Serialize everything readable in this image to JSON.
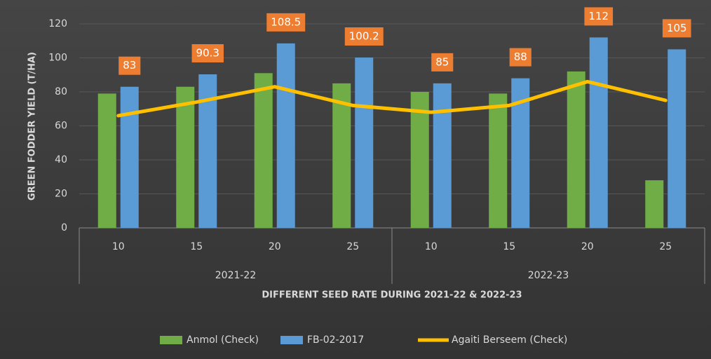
{
  "chart_data": {
    "type": "bar",
    "y_axis_label": "GREEN FODDER YIELD (T/HA)",
    "x_axis_label": "DIFFERENT SEED RATE DURING 2021-22 & 2022-23",
    "categories": [
      "10",
      "15",
      "20",
      "25",
      "10",
      "15",
      "20",
      "25"
    ],
    "category_groups": [
      "2021-22",
      "2022-23"
    ],
    "series": [
      {
        "name": "Anmol (Check)",
        "type": "bar",
        "color": "#70ad47",
        "values": [
          79,
          83,
          91,
          85,
          80,
          79,
          92,
          28
        ]
      },
      {
        "name": "FB-02-2017",
        "type": "bar",
        "color": "#5b9bd5",
        "values": [
          83,
          90.3,
          108.5,
          100.2,
          85,
          88,
          112,
          105
        ],
        "data_labels": true,
        "label_color": "#ed7d31"
      },
      {
        "name": "Agaiti Berseem (Check)",
        "type": "line",
        "color": "#ffc000",
        "values": [
          66,
          74,
          83,
          72,
          68,
          72,
          86,
          75
        ]
      }
    ],
    "ylim": [
      0,
      120
    ],
    "yticks": [
      0,
      20,
      40,
      60,
      80,
      100,
      120
    ],
    "grid": true,
    "legend": "bottom"
  }
}
